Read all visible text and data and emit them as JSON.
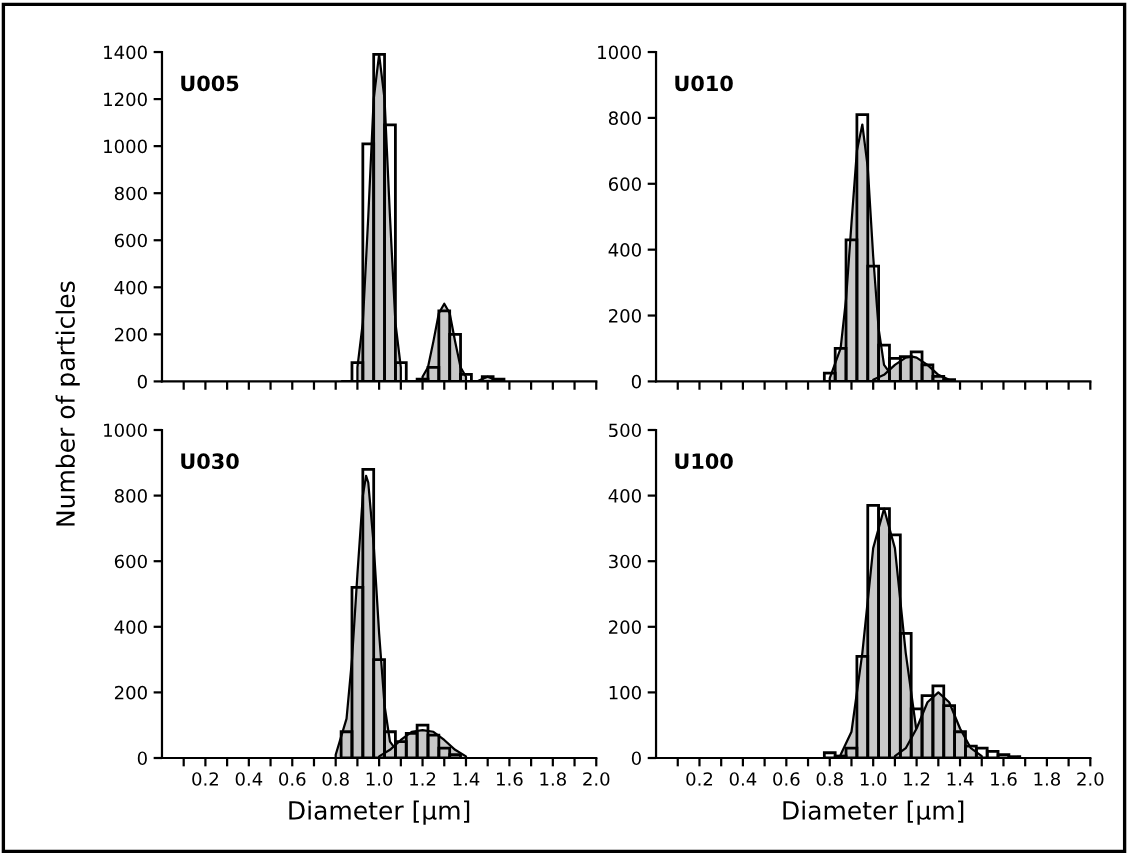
{
  "chart_data": [
    {
      "type": "histogram",
      "title": "U005",
      "ylabel": "Number of particles",
      "xlim": [
        0,
        2.0
      ],
      "ylim": [
        0,
        1400
      ],
      "tick_labels": "y",
      "xticks": [
        0.1,
        0.2,
        0.3,
        0.4,
        0.5,
        0.6,
        0.7,
        0.8,
        0.9,
        1.0,
        1.1,
        1.2,
        1.3,
        1.4,
        1.5,
        1.6,
        1.7,
        1.8,
        1.9,
        2.0
      ],
      "yticks": [
        0,
        200,
        400,
        600,
        800,
        1000,
        1200,
        1400
      ],
      "series": [
        {
          "type": "area",
          "color": "#c8c8c8",
          "x": [
            0.9,
            0.925,
            0.95,
            0.975,
            1.0,
            1.025,
            1.05,
            1.075,
            1.1
          ],
          "values": [
            60,
            250,
            700,
            1200,
            1390,
            1200,
            700,
            250,
            60
          ]
        },
        {
          "type": "area",
          "color": "#c8c8c8",
          "x": [
            1.2,
            1.225,
            1.25,
            1.275,
            1.3,
            1.325,
            1.35,
            1.375,
            1.4
          ],
          "values": [
            20,
            60,
            170,
            290,
            330,
            290,
            170,
            60,
            20
          ]
        },
        {
          "type": "area",
          "color": "#c8c8c8",
          "x": [
            1.45,
            1.475,
            1.5,
            1.525,
            1.55
          ],
          "values": [
            0,
            10,
            20,
            10,
            0
          ]
        },
        {
          "type": "histogram",
          "color": "#000000",
          "bins": [
            0.825,
            0.875,
            0.925,
            0.975,
            1.025,
            1.075,
            1.125,
            1.175,
            1.225,
            1.275,
            1.325,
            1.375,
            1.425,
            1.475,
            1.525,
            1.575
          ],
          "values": [
            0,
            80,
            1010,
            1390,
            1090,
            80,
            0,
            10,
            60,
            300,
            200,
            30,
            0,
            20,
            10
          ]
        }
      ]
    },
    {
      "type": "histogram",
      "title": "U010",
      "xlim": [
        0,
        2.0
      ],
      "ylim": [
        0,
        1000
      ],
      "tick_labels": "y",
      "xticks": [
        0.1,
        0.2,
        0.3,
        0.4,
        0.5,
        0.6,
        0.7,
        0.8,
        0.9,
        1.0,
        1.1,
        1.2,
        1.3,
        1.4,
        1.5,
        1.6,
        1.7,
        1.8,
        1.9,
        2.0
      ],
      "yticks": [
        0,
        200,
        400,
        600,
        800,
        1000
      ],
      "series": [
        {
          "type": "area",
          "color": "#c8c8c8",
          "x": [
            0.8,
            0.85,
            0.875,
            0.9,
            0.925,
            0.95,
            0.975,
            1.0,
            1.025,
            1.05,
            1.1
          ],
          "values": [
            10,
            100,
            250,
            480,
            700,
            780,
            650,
            380,
            160,
            50,
            5
          ]
        },
        {
          "type": "area",
          "color": "#c8c8c8",
          "x": [
            1.0,
            1.05,
            1.1,
            1.15,
            1.18,
            1.2,
            1.25,
            1.3,
            1.35
          ],
          "values": [
            5,
            20,
            50,
            72,
            75,
            72,
            50,
            20,
            5
          ]
        },
        {
          "type": "histogram",
          "color": "#000000",
          "bins": [
            0.775,
            0.825,
            0.875,
            0.925,
            0.975,
            1.025,
            1.075,
            1.125,
            1.175,
            1.225,
            1.275,
            1.325,
            1.375
          ],
          "values": [
            25,
            100,
            430,
            810,
            350,
            110,
            70,
            75,
            90,
            50,
            15,
            5
          ]
        }
      ]
    },
    {
      "type": "histogram",
      "title": "U030",
      "xlabel": "Diameter [μm]",
      "xlim": [
        0,
        2.0
      ],
      "ylim": [
        0,
        1000
      ],
      "xticks": [
        {
          "value": 0.1,
          "label": null
        },
        0.2,
        {
          "value": 0.3,
          "label": null
        },
        0.4,
        {
          "value": 0.5,
          "label": null
        },
        0.6,
        {
          "value": 0.7,
          "label": null
        },
        0.8,
        {
          "value": 0.9,
          "label": null
        },
        {
          "value": 1,
          "label": "1.0"
        },
        {
          "value": 1.1,
          "label": null
        },
        1.2,
        {
          "value": 1.3,
          "label": null
        },
        1.4,
        {
          "value": 1.5,
          "label": null
        },
        1.6,
        {
          "value": 1.7,
          "label": null
        },
        1.8,
        {
          "value": 1.9,
          "label": null
        },
        {
          "value": 2,
          "label": "2.0"
        }
      ],
      "yticks": [
        0,
        200,
        400,
        600,
        800,
        1000
      ],
      "series": [
        {
          "type": "area",
          "color": "#c8c8c8",
          "x": [
            0.8,
            0.85,
            0.875,
            0.9,
            0.925,
            0.94,
            0.95,
            0.975,
            1.0,
            1.025,
            1.05,
            1.1
          ],
          "values": [
            10,
            120,
            300,
            560,
            800,
            860,
            840,
            650,
            380,
            160,
            50,
            5
          ]
        },
        {
          "type": "area",
          "color": "#c8c8c8",
          "x": [
            1.0,
            1.05,
            1.1,
            1.15,
            1.2,
            1.25,
            1.3,
            1.35,
            1.4
          ],
          "values": [
            5,
            25,
            55,
            80,
            85,
            80,
            55,
            25,
            5
          ]
        },
        {
          "type": "histogram",
          "color": "#000000",
          "bins": [
            0.825,
            0.875,
            0.925,
            0.975,
            1.025,
            1.075,
            1.125,
            1.175,
            1.225,
            1.275,
            1.325,
            1.375
          ],
          "values": [
            80,
            520,
            880,
            300,
            80,
            50,
            75,
            100,
            70,
            30,
            10
          ]
        }
      ]
    },
    {
      "type": "histogram",
      "title": "U100",
      "xlabel": "Diameter [μm]",
      "xlim": [
        0,
        2.0
      ],
      "ylim": [
        0,
        500
      ],
      "xticks": [
        {
          "value": 0.1,
          "label": null
        },
        0.2,
        {
          "value": 0.3,
          "label": null
        },
        0.4,
        {
          "value": 0.5,
          "label": null
        },
        0.6,
        {
          "value": 0.7,
          "label": null
        },
        0.8,
        {
          "value": 0.9,
          "label": null
        },
        {
          "value": 1,
          "label": "1.0"
        },
        {
          "value": 1.1,
          "label": null
        },
        1.2,
        {
          "value": 1.3,
          "label": null
        },
        1.4,
        {
          "value": 1.5,
          "label": null
        },
        1.6,
        {
          "value": 1.7,
          "label": null
        },
        1.8,
        {
          "value": 1.9,
          "label": null
        },
        {
          "value": 2,
          "label": "2.0"
        }
      ],
      "yticks": [
        0,
        100,
        200,
        300,
        400,
        500
      ],
      "series": [
        {
          "type": "area",
          "color": "#c8c8c8",
          "x": [
            0.85,
            0.9,
            0.95,
            1.0,
            1.05,
            1.1,
            1.15,
            1.2
          ],
          "values": [
            5,
            40,
            160,
            320,
            380,
            320,
            160,
            40
          ]
        },
        {
          "type": "area",
          "color": "#c8c8c8",
          "x": [
            1.1,
            1.15,
            1.2,
            1.25,
            1.3,
            1.35,
            1.4,
            1.45,
            1.5
          ],
          "values": [
            3,
            15,
            45,
            85,
            100,
            85,
            45,
            15,
            3
          ]
        },
        {
          "type": "histogram",
          "color": "#000000",
          "bins": [
            0.775,
            0.825,
            0.875,
            0.925,
            0.975,
            1.025,
            1.075,
            1.125,
            1.175,
            1.225,
            1.275,
            1.325,
            1.375,
            1.425,
            1.475,
            1.525,
            1.575,
            1.625,
            1.675
          ],
          "values": [
            8,
            3,
            15,
            155,
            385,
            380,
            340,
            190,
            75,
            95,
            110,
            80,
            40,
            18,
            15,
            10,
            5,
            2
          ]
        }
      ]
    }
  ]
}
